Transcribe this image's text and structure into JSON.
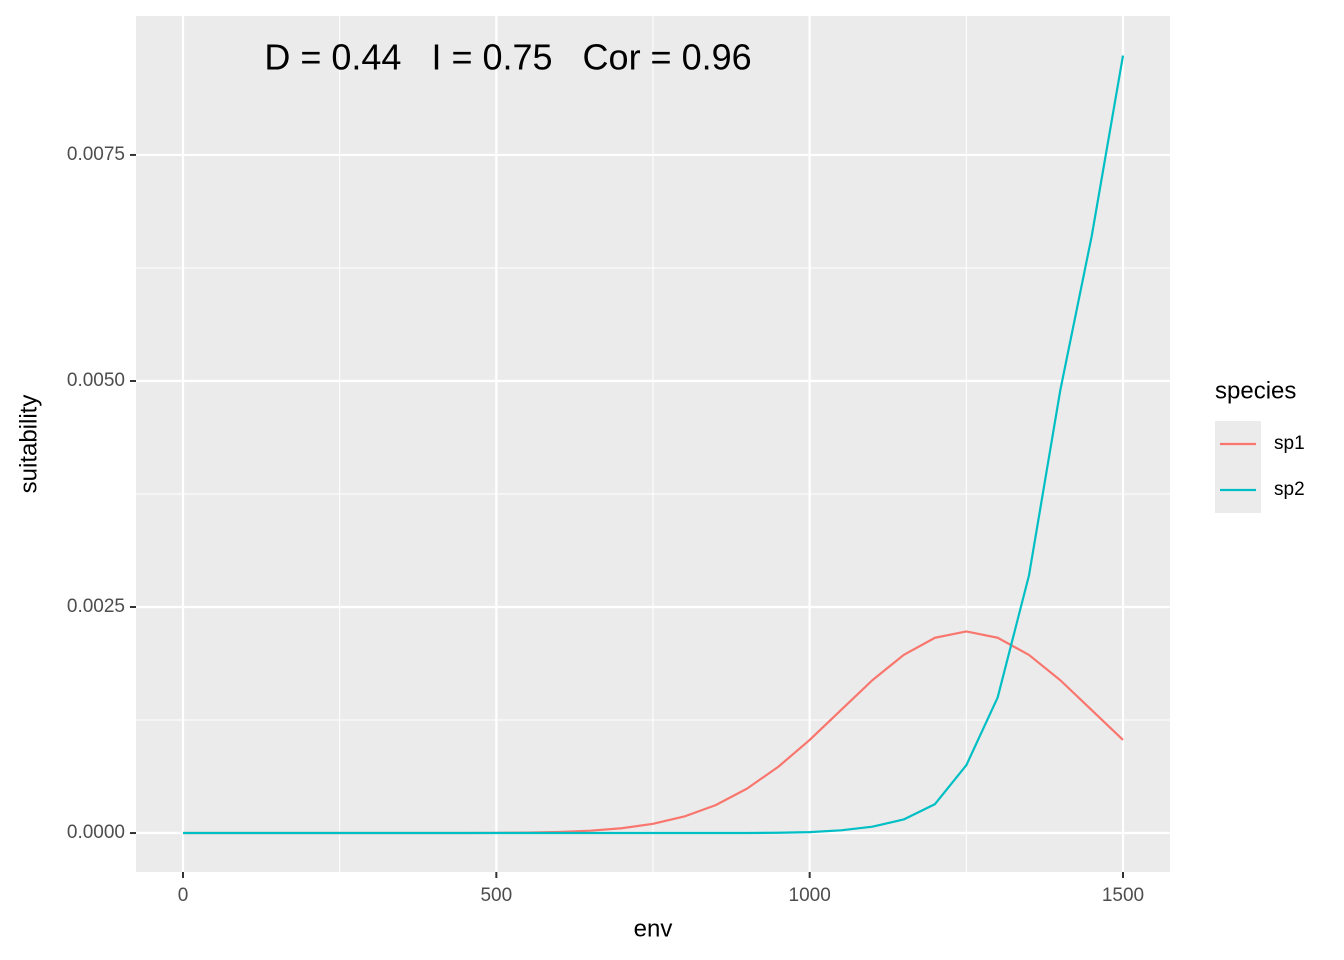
{
  "chart_data": {
    "type": "line",
    "annotation": "D = 0.44   I = 0.75   Cor = 0.96",
    "x_label": "env",
    "y_label": "suitability",
    "legend_title": "species",
    "legend_position": "right",
    "grid": true,
    "x": [
      0,
      50,
      100,
      150,
      200,
      250,
      300,
      350,
      400,
      450,
      500,
      550,
      600,
      650,
      700,
      750,
      800,
      850,
      900,
      950,
      1000,
      1050,
      1100,
      1150,
      1200,
      1250,
      1300,
      1350,
      1400,
      1450,
      1500
    ],
    "series": [
      {
        "name": "sp1",
        "color": "#F8766D",
        "values": [
          0,
          0,
          0,
          0,
          0,
          0,
          0,
          0,
          0,
          0,
          2e-06,
          5e-06,
          1.2e-05,
          2.6e-05,
          5.3e-05,
          0.000102,
          0.000183,
          0.000309,
          0.000491,
          0.000733,
          0.00103,
          0.00136,
          0.00169,
          0.00197,
          0.00216,
          0.00223,
          0.00216,
          0.00197,
          0.00169,
          0.00136,
          0.00103
        ]
      },
      {
        "name": "sp2",
        "color": "#00BFC4",
        "values": [
          0,
          0,
          0,
          0,
          0,
          0,
          0,
          0,
          0,
          0,
          0,
          0,
          0,
          0,
          0,
          0,
          0,
          0,
          0,
          3e-06,
          1e-05,
          3e-05,
          7e-05,
          0.00015,
          0.00032,
          0.00075,
          0.0015,
          0.00285,
          0.0049,
          0.0066,
          0.0086
        ]
      }
    ],
    "xlim": [
      -75,
      1575
    ],
    "xticks": [
      0,
      500,
      1000,
      1500
    ],
    "ylim": [
      -0.000431,
      0.009037
    ],
    "yticks": [
      {
        "value": 0,
        "label": "0.0000"
      },
      {
        "value": 0.0025,
        "label": "0.0025"
      },
      {
        "value": 0.005,
        "label": "0.0050"
      },
      {
        "value": 0.0075,
        "label": "0.0075"
      }
    ]
  }
}
